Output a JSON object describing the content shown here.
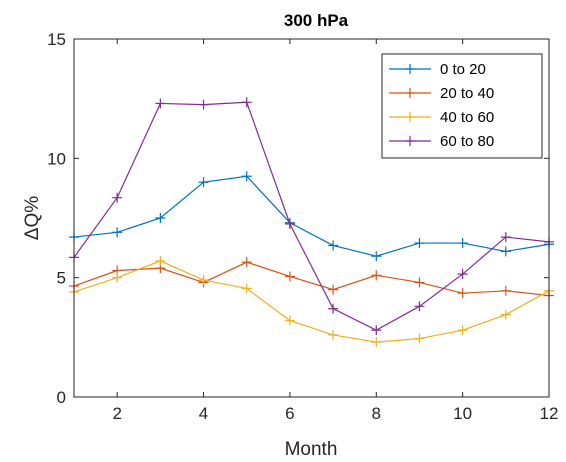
{
  "chart_data": {
    "type": "line",
    "title": "300 hPa",
    "xlabel": "Month",
    "ylabel": "ΔQ%",
    "xlim": [
      1,
      12
    ],
    "ylim": [
      0,
      15
    ],
    "xticks": [
      2,
      4,
      6,
      8,
      10,
      12
    ],
    "yticks": [
      0,
      5,
      10,
      15
    ],
    "x": [
      1,
      2,
      3,
      4,
      5,
      6,
      7,
      8,
      9,
      10,
      11,
      12
    ],
    "grid": false,
    "legend_position": "top-right",
    "marker": "plus",
    "series": [
      {
        "name": "0 to 20",
        "color": "#0072BD",
        "values": [
          6.7,
          6.9,
          7.5,
          9.0,
          9.25,
          7.3,
          6.35,
          5.9,
          6.45,
          6.45,
          6.1,
          6.4
        ]
      },
      {
        "name": "20 to 40",
        "color": "#D95319",
        "values": [
          4.65,
          5.3,
          5.4,
          4.8,
          5.65,
          5.05,
          4.5,
          5.1,
          4.8,
          4.35,
          4.45,
          4.25
        ]
      },
      {
        "name": "40 to 60",
        "color": "#EDB120",
        "values": [
          4.4,
          5.0,
          5.7,
          4.9,
          4.55,
          3.2,
          2.6,
          2.3,
          2.45,
          2.8,
          3.45,
          4.45
        ]
      },
      {
        "name": "60 to 80",
        "color": "#7E2F8E",
        "values": [
          5.85,
          8.35,
          12.3,
          12.25,
          12.35,
          7.25,
          3.7,
          2.8,
          3.8,
          5.15,
          6.7,
          6.5
        ]
      }
    ]
  }
}
